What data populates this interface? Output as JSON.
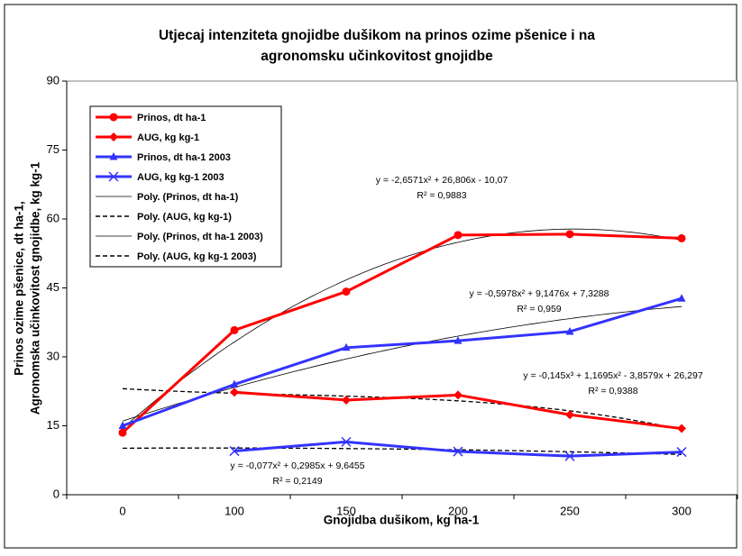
{
  "chart_data": {
    "type": "line",
    "title": [
      "Utjecaj intenziteta gnojidbe dušikom na prinos ozime pšenice i na",
      "agronomsku učinkovitost gnojidbe"
    ],
    "y_label": [
      "Prinos ozime pšenice, dt ha-1,",
      "Agronomska učinkovitost gnojidbe, kg kg-1"
    ],
    "x_label": "Gnojidba dušikom, kg ha-1",
    "categories": [
      "0",
      "100",
      "150",
      "200",
      "250",
      "300"
    ],
    "ylim": [
      0,
      90
    ],
    "yticks": [
      0,
      15,
      30,
      45,
      60,
      75,
      90
    ],
    "series": [
      {
        "name": "Prinos, dt ha-1",
        "color": "#ff0000",
        "marker": "circle",
        "values": [
          13.5,
          35.8,
          44.2,
          56.5,
          56.7,
          55.8
        ]
      },
      {
        "name": "AUG, kg kg-1",
        "color": "#ff0000",
        "marker": "diamond",
        "values": [
          null,
          22.3,
          20.6,
          21.7,
          17.4,
          14.4
        ]
      },
      {
        "name": "Prinos, dt ha-1 2003",
        "color": "#3333ff",
        "marker": "triangle",
        "values": [
          15,
          24,
          32,
          33.5,
          35.5,
          42.7
        ]
      },
      {
        "name": "AUG, kg kg-1 2003",
        "color": "#3333ff",
        "marker": "x",
        "values": [
          null,
          9.5,
          11.5,
          9.4,
          8.4,
          9.3
        ]
      }
    ],
    "trendlines": [
      {
        "name": "Poly. (Prinos, dt ha-1)",
        "of": 0,
        "order": 2,
        "dash": "solid"
      },
      {
        "name": "Poly. (AUG, kg kg-1)",
        "of": 1,
        "order": 3,
        "dash": "dashed"
      },
      {
        "name": "Poly. (Prinos, dt ha-1 2003)",
        "of": 2,
        "order": 2,
        "dash": "solid"
      },
      {
        "name": "Poly. (AUG, kg kg-1 2003)",
        "of": 3,
        "order": 2,
        "dash": "dashed"
      }
    ],
    "annotations": [
      [
        "y = -2,6571x² + 26,806x - 10,07",
        "R² = 0,9883"
      ],
      [
        "y = -0,5978x² + 9,1476x + 7,3288",
        "R² = 0,959"
      ],
      [
        "y = -0,145x³ + 1,1695x² - 3,8579x + 26,297",
        "R² = 0,9388"
      ],
      [
        "y = -0,077x² + 0,2985x + 9,6455",
        "R² = 0,2149"
      ]
    ]
  }
}
